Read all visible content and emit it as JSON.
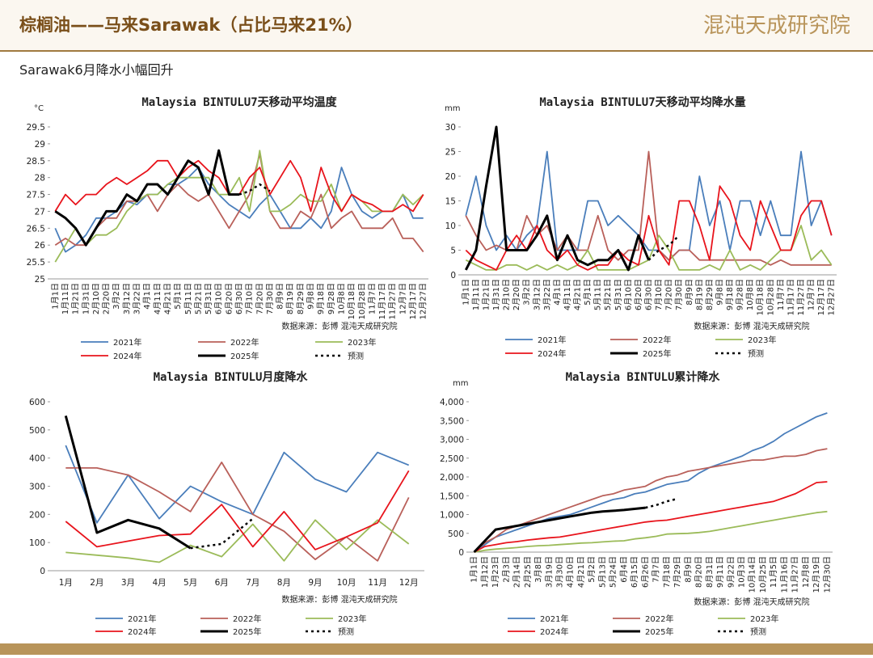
{
  "header": {
    "title": "棕榈油——马来Sarawak（占比马来21%）",
    "logo": "混沌天成研究院"
  },
  "subtitle": "Sarawak6月降水小幅回升",
  "chart_data": [
    {
      "type": "line",
      "title": "Malaysia BINTULU7天移动平均温度",
      "unit": "°C",
      "source": "数据来源：彭博  混沌天成研究院",
      "categories": [
        "1月1日",
        "1月11日",
        "1月21日",
        "1月31日",
        "2月10日",
        "2月20日",
        "3月2日",
        "3月12日",
        "3月22日",
        "4月1日",
        "4月11日",
        "4月21日",
        "5月1日",
        "5月11日",
        "5月21日",
        "5月31日",
        "6月10日",
        "6月20日",
        "6月30日",
        "7月10日",
        "7月20日",
        "7月30日",
        "8月9日",
        "8月19日",
        "8月29日",
        "9月8日",
        "9月18日",
        "9月28日",
        "10月8日",
        "10月18日",
        "10月28日",
        "11月7日",
        "11月17日",
        "11月27日",
        "12月7日",
        "12月17日",
        "12月27日"
      ],
      "series": [
        {
          "name": "2021年",
          "color": "#4a7ebb",
          "line_width": 1.8,
          "values": [
            26.5,
            25.8,
            26.0,
            26.3,
            26.8,
            26.8,
            27.0,
            27.3,
            27.2,
            27.5,
            27.5,
            27.8,
            27.8,
            28.0,
            28.3,
            27.8,
            27.5,
            27.2,
            27.0,
            26.8,
            27.2,
            27.5,
            27.0,
            26.5,
            26.5,
            26.8,
            26.5,
            27.0,
            28.3,
            27.5,
            27.0,
            26.8,
            27.0,
            27.0,
            27.5,
            26.8,
            26.8
          ]
        },
        {
          "name": "2022年",
          "color": "#b9605a",
          "line_width": 1.8,
          "values": [
            26.0,
            26.2,
            26.0,
            26.0,
            26.5,
            26.8,
            26.8,
            27.3,
            27.3,
            27.5,
            27.0,
            27.5,
            27.8,
            27.5,
            27.3,
            27.5,
            27.0,
            26.5,
            27.0,
            27.5,
            28.7,
            27.0,
            26.5,
            26.5,
            27.0,
            26.8,
            27.5,
            26.5,
            26.8,
            27.0,
            26.5,
            26.5,
            26.5,
            26.8,
            26.2,
            26.2,
            25.8
          ]
        },
        {
          "name": "2023年",
          "color": "#9bbb59",
          "line_width": 1.8,
          "values": [
            25.5,
            26.0,
            26.5,
            26.0,
            26.3,
            26.3,
            26.5,
            27.0,
            27.3,
            27.5,
            27.5,
            27.8,
            28.0,
            28.0,
            28.0,
            28.0,
            27.5,
            27.5,
            28.0,
            27.0,
            28.8,
            27.0,
            27.0,
            27.2,
            27.5,
            27.3,
            27.3,
            27.8,
            27.0,
            27.5,
            27.3,
            27.0,
            27.0,
            27.0,
            27.5,
            27.2,
            27.5
          ]
        },
        {
          "name": "2024年",
          "color": "#e8141c",
          "line_width": 1.8,
          "values": [
            27.0,
            27.5,
            27.2,
            27.5,
            27.5,
            27.8,
            28.0,
            27.8,
            28.0,
            28.2,
            28.5,
            28.5,
            28.0,
            28.3,
            28.5,
            28.2,
            28.0,
            27.5,
            27.5,
            28.0,
            28.3,
            27.5,
            28.0,
            28.5,
            28.0,
            27.0,
            28.3,
            27.5,
            27.0,
            27.5,
            27.3,
            27.2,
            27.0,
            27.0,
            27.2,
            27.0,
            27.5
          ]
        },
        {
          "name": "2025年",
          "color": "#000000",
          "line_width": 3,
          "values": [
            27.0,
            26.8,
            26.5,
            26.0,
            26.5,
            27.0,
            27.0,
            27.5,
            27.3,
            27.8,
            27.8,
            27.5,
            28.0,
            28.5,
            28.3,
            27.5,
            28.8,
            27.5,
            27.5,
            null,
            null,
            null,
            null,
            null,
            null,
            null,
            null,
            null,
            null,
            null,
            null,
            null,
            null,
            null,
            null,
            null,
            null
          ]
        },
        {
          "name": "预测",
          "color": "#000000",
          "line_width": 2.5,
          "dash": true,
          "values": [
            null,
            null,
            null,
            null,
            null,
            null,
            null,
            null,
            null,
            null,
            null,
            null,
            null,
            null,
            null,
            null,
            null,
            null,
            27.5,
            27.6,
            27.8,
            27.6,
            null,
            null,
            null,
            null,
            null,
            null,
            null,
            null,
            null,
            null,
            null,
            null,
            null,
            null,
            null
          ]
        }
      ],
      "ylim": [
        25,
        29.5
      ],
      "yticks": [
        25,
        25.5,
        26,
        26.5,
        27,
        27.5,
        28,
        28.5,
        29,
        29.5
      ]
    },
    {
      "type": "line",
      "title": "Malaysia BINTULU7天移动平均降水量",
      "unit": "mm",
      "source": "数据来源：彭博  混沌天成研究院",
      "categories": [
        "1月1日",
        "1月11日",
        "1月21日",
        "1月31日",
        "2月10日",
        "2月20日",
        "3月2日",
        "3月12日",
        "3月22日",
        "4月1日",
        "4月11日",
        "4月21日",
        "5月1日",
        "5月11日",
        "5月21日",
        "5月31日",
        "6月10日",
        "6月20日",
        "6月30日",
        "7月10日",
        "7月20日",
        "7月30日",
        "8月9日",
        "8月19日",
        "8月29日",
        "9月8日",
        "9月18日",
        "9月28日",
        "10月8日",
        "10月18日",
        "10月28日",
        "11月7日",
        "11月17日",
        "11月27日",
        "12月7日",
        "12月17日",
        "12月27日"
      ],
      "series": [
        {
          "name": "2021年",
          "color": "#4a7ebb",
          "line_width": 1.8,
          "values": [
            12,
            20,
            10,
            5,
            8,
            5,
            8,
            10,
            25,
            5,
            5,
            5,
            15,
            15,
            10,
            12,
            10,
            8,
            5,
            5,
            3,
            5,
            5,
            20,
            10,
            15,
            5,
            15,
            15,
            8,
            15,
            8,
            8,
            25,
            10,
            15,
            8
          ]
        },
        {
          "name": "2022年",
          "color": "#b9605a",
          "line_width": 1.8,
          "values": [
            12,
            8,
            5,
            6,
            5,
            5,
            12,
            8,
            10,
            5,
            8,
            5,
            5,
            12,
            5,
            3,
            5,
            5,
            25,
            5,
            3,
            5,
            5,
            3,
            3,
            3,
            3,
            3,
            3,
            3,
            2,
            3,
            2,
            2,
            2,
            2,
            2
          ]
        },
        {
          "name": "2023年",
          "color": "#9bbb59",
          "line_width": 1.8,
          "values": [
            3,
            2,
            1,
            1,
            2,
            2,
            1,
            2,
            1,
            2,
            1,
            2,
            5,
            1,
            1,
            1,
            1,
            2,
            3,
            8,
            5,
            1,
            1,
            1,
            2,
            1,
            5,
            1,
            2,
            1,
            3,
            5,
            5,
            10,
            3,
            5,
            2
          ]
        },
        {
          "name": "2024年",
          "color": "#e8141c",
          "line_width": 1.8,
          "values": [
            5,
            3,
            2,
            1,
            5,
            8,
            5,
            10,
            5,
            3,
            5,
            2,
            1,
            2,
            2,
            5,
            3,
            2,
            12,
            5,
            2,
            15,
            15,
            10,
            3,
            18,
            15,
            8,
            5,
            15,
            10,
            5,
            5,
            12,
            15,
            15,
            8
          ]
        },
        {
          "name": "2025年",
          "color": "#000000",
          "line_width": 3,
          "values": [
            1,
            5,
            18,
            30,
            5,
            5,
            5,
            8,
            12,
            3,
            8,
            3,
            2,
            3,
            3,
            5,
            1,
            8,
            3,
            null,
            null,
            null,
            null,
            null,
            null,
            null,
            null,
            null,
            null,
            null,
            null,
            null,
            null,
            null,
            null,
            null,
            null
          ]
        },
        {
          "name": "预测",
          "color": "#000000",
          "line_width": 2.5,
          "dash": true,
          "values": [
            null,
            null,
            null,
            null,
            null,
            null,
            null,
            null,
            null,
            null,
            null,
            null,
            null,
            null,
            null,
            null,
            null,
            null,
            3,
            5,
            6,
            8,
            null,
            null,
            null,
            null,
            null,
            null,
            null,
            null,
            null,
            null,
            null,
            null,
            null,
            null,
            null
          ]
        }
      ],
      "ylim": [
        0,
        30
      ],
      "yticks": [
        0,
        5,
        10,
        15,
        20,
        25,
        30
      ]
    },
    {
      "type": "line",
      "title": "Malaysia BINTULU月度降水",
      "source": "数据来源：彭博  混沌天成研究院",
      "categories": [
        "1月",
        "2月",
        "3月",
        "4月",
        "5月",
        "6月",
        "7月",
        "8月",
        "9月",
        "10月",
        "11月",
        "12月"
      ],
      "series": [
        {
          "name": "2021年",
          "color": "#4a7ebb",
          "line_width": 1.8,
          "values": [
            445,
            170,
            340,
            185,
            300,
            245,
            200,
            420,
            325,
            280,
            420,
            375
          ]
        },
        {
          "name": "2022年",
          "color": "#b9605a",
          "line_width": 1.8,
          "values": [
            365,
            365,
            340,
            280,
            210,
            385,
            200,
            140,
            40,
            120,
            35,
            260
          ]
        },
        {
          "name": "2023年",
          "color": "#9bbb59",
          "line_width": 1.8,
          "values": [
            65,
            55,
            45,
            30,
            90,
            50,
            165,
            35,
            180,
            75,
            180,
            95
          ]
        },
        {
          "name": "2024年",
          "color": "#e8141c",
          "line_width": 1.8,
          "values": [
            175,
            85,
            105,
            125,
            130,
            235,
            85,
            210,
            75,
            120,
            170,
            355
          ]
        },
        {
          "name": "2025年",
          "color": "#000000",
          "line_width": 3,
          "values": [
            550,
            135,
            180,
            150,
            80,
            null,
            null,
            null,
            null,
            null,
            null,
            null
          ]
        },
        {
          "name": "预测",
          "color": "#000000",
          "line_width": 2.5,
          "dash": true,
          "values": [
            null,
            null,
            null,
            null,
            80,
            95,
            185,
            null,
            null,
            null,
            null,
            null
          ]
        }
      ],
      "ylim": [
        0,
        600
      ],
      "yticks": [
        0,
        100,
        200,
        300,
        400,
        500,
        600
      ]
    },
    {
      "type": "line",
      "title": "Malaysia BINTULU累计降水",
      "unit": "mm",
      "source": "数据来源：彭博  混沌天成研究院",
      "categories": [
        "1月1日",
        "1月12日",
        "1月23日",
        "2月3日",
        "2月14日",
        "2月25日",
        "3月8日",
        "3月19日",
        "3月30日",
        "4月10日",
        "4月21日",
        "5月2日",
        "5月13日",
        "5月24日",
        "6月4日",
        "6月15日",
        "6月26日",
        "7月7日",
        "7月18日",
        "7月29日",
        "8月9日",
        "8月20日",
        "8月31日",
        "9月11日",
        "9月22日",
        "10月3日",
        "10月14日",
        "10月25日",
        "11月5日",
        "11月16日",
        "11月27日",
        "12月8日",
        "12月19日",
        "12月30日"
      ],
      "series": [
        {
          "name": "2021年",
          "color": "#4a7ebb",
          "line_width": 1.8,
          "values": [
            0,
            200,
            400,
            500,
            600,
            700,
            800,
            900,
            950,
            1000,
            1100,
            1200,
            1300,
            1400,
            1450,
            1550,
            1600,
            1700,
            1800,
            1850,
            1900,
            2100,
            2250,
            2350,
            2450,
            2550,
            2700,
            2800,
            2950,
            3150,
            3300,
            3450,
            3600,
            3700
          ]
        },
        {
          "name": "2022年",
          "color": "#b9605a",
          "line_width": 1.8,
          "values": [
            0,
            250,
            400,
            600,
            700,
            800,
            900,
            1000,
            1100,
            1200,
            1300,
            1400,
            1500,
            1550,
            1650,
            1700,
            1750,
            1900,
            2000,
            2050,
            2150,
            2200,
            2250,
            2300,
            2350,
            2400,
            2450,
            2450,
            2500,
            2550,
            2550,
            2600,
            2700,
            2750
          ]
        },
        {
          "name": "2023年",
          "color": "#9bbb59",
          "line_width": 1.8,
          "values": [
            0,
            50,
            80,
            100,
            120,
            150,
            170,
            180,
            200,
            220,
            240,
            250,
            270,
            290,
            300,
            350,
            380,
            420,
            480,
            490,
            500,
            520,
            550,
            600,
            650,
            700,
            750,
            800,
            850,
            900,
            950,
            1000,
            1050,
            1080
          ]
        },
        {
          "name": "2024年",
          "color": "#e8141c",
          "line_width": 1.8,
          "values": [
            0,
            150,
            200,
            250,
            280,
            320,
            350,
            380,
            400,
            450,
            500,
            550,
            600,
            650,
            700,
            750,
            800,
            830,
            850,
            900,
            950,
            1000,
            1050,
            1100,
            1150,
            1200,
            1250,
            1300,
            1350,
            1450,
            1550,
            1700,
            1850,
            1870
          ]
        },
        {
          "name": "2025年",
          "color": "#000000",
          "line_width": 3,
          "values": [
            0,
            300,
            600,
            650,
            700,
            750,
            800,
            850,
            900,
            950,
            1000,
            1050,
            1080,
            1100,
            1120,
            1150,
            1180,
            null,
            null,
            null,
            null,
            null,
            null,
            null,
            null,
            null,
            null,
            null,
            null,
            null,
            null,
            null,
            null,
            null
          ]
        },
        {
          "name": "预测",
          "color": "#000000",
          "line_width": 2.5,
          "dash": true,
          "values": [
            null,
            null,
            null,
            null,
            null,
            null,
            null,
            null,
            null,
            null,
            null,
            null,
            null,
            null,
            null,
            null,
            1180,
            1250,
            1350,
            1420,
            null,
            null,
            null,
            null,
            null,
            null,
            null,
            null,
            null,
            null,
            null,
            null,
            null,
            null
          ]
        }
      ],
      "ylim": [
        0,
        4000
      ],
      "yticks": [
        0,
        {
          "value": 500,
          "label": "500"
        },
        {
          "value": 1000,
          "label": "1,000"
        },
        {
          "value": 1500,
          "label": "1,500"
        },
        {
          "value": 2000,
          "label": "2,000"
        },
        {
          "value": 2500,
          "label": "2,500"
        },
        {
          "value": 3000,
          "label": "3,000"
        },
        {
          "value": 3500,
          "label": "3,500"
        },
        {
          "value": 4000,
          "label": "4,000"
        }
      ]
    }
  ]
}
